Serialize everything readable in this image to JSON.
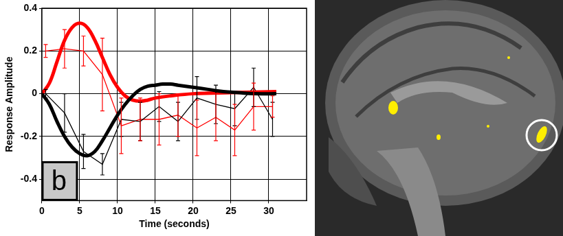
{
  "chart_data": {
    "type": "line",
    "panel_label": "b",
    "x_label": "Time (seconds)",
    "y_label": "Response Amplitude",
    "xlim": [
      0,
      35
    ],
    "xticks": [
      0,
      5,
      10,
      15,
      20,
      25,
      30
    ],
    "ylim": [
      -0.5,
      0.4
    ],
    "yticks": [
      -0.4,
      -0.2,
      0,
      0.2,
      0.4
    ],
    "grid": true,
    "series": [
      {
        "color": "#000000",
        "line_style": "solid",
        "marker": "none",
        "x": [
          0,
          1,
          2,
          3,
          4,
          5,
          6,
          7,
          8,
          9,
          10,
          11,
          12,
          13,
          14,
          15,
          16,
          17,
          18,
          19,
          20,
          22,
          24,
          26,
          28,
          31
        ],
        "values": [
          0,
          -0.05,
          -0.13,
          -0.2,
          -0.25,
          -0.28,
          -0.29,
          -0.27,
          -0.22,
          -0.16,
          -0.1,
          -0.05,
          -0.01,
          0.02,
          0.035,
          0.04,
          0.045,
          0.045,
          0.04,
          0.035,
          0.03,
          0.02,
          0.01,
          0.005,
          0,
          0
        ]
      },
      {
        "color": "#ff0000",
        "line_style": "solid",
        "marker": "none",
        "x": [
          0,
          1,
          2,
          3,
          4,
          5,
          6,
          7,
          8,
          9,
          10,
          11,
          12,
          13,
          14,
          15,
          17,
          20,
          25,
          31
        ],
        "values": [
          0,
          0.05,
          0.15,
          0.25,
          0.31,
          0.33,
          0.31,
          0.25,
          0.17,
          0.09,
          0.03,
          -0.01,
          -0.03,
          -0.035,
          -0.03,
          -0.02,
          -0.01,
          0,
          0.005,
          0.01
        ]
      },
      {
        "color": "#000000",
        "line_style": "solid",
        "marker": "none",
        "x": [
          0.5,
          3,
          5.5,
          8,
          10.5,
          13,
          15.5,
          18,
          20.5,
          23,
          25.5,
          28,
          30.5
        ],
        "values": [
          0,
          -0.09,
          -0.27,
          -0.33,
          -0.12,
          -0.13,
          -0.06,
          -0.13,
          -0.02,
          -0.05,
          -0.07,
          0.03,
          -0.12
        ],
        "error": [
          0.02,
          0.09,
          0.08,
          0.05,
          0.08,
          0.09,
          0.07,
          0.09,
          0.1,
          0.09,
          0.08,
          0.09,
          0.08
        ]
      },
      {
        "color": "#ff0000",
        "line_style": "solid",
        "marker": "none",
        "x": [
          0.5,
          3,
          5.5,
          8,
          10.5,
          13,
          15.5,
          18,
          20.5,
          23,
          25.5,
          28,
          30.5
        ],
        "values": [
          0.2,
          0.21,
          0.2,
          0.09,
          -0.15,
          -0.12,
          -0.12,
          -0.1,
          -0.16,
          -0.11,
          -0.17,
          -0.06,
          -0.06
        ],
        "error": [
          0.03,
          0.09,
          0.07,
          0.17,
          0.13,
          0.1,
          0.12,
          0.1,
          0.13,
          0.11,
          0.12,
          0.11,
          0.05
        ]
      }
    ]
  }
}
